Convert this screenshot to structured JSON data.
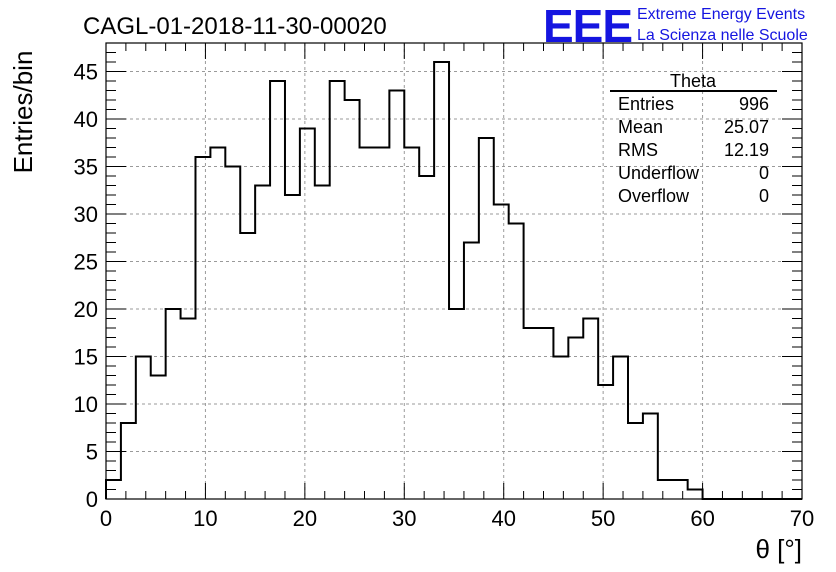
{
  "logo": {
    "mark": "EEE",
    "line1": "Extreme Energy Events",
    "line2": "La Scienza nelle Scuole",
    "color": "#1515e0"
  },
  "chart_data": {
    "type": "histogram",
    "title": "CAGL-01-2018-11-30-00020",
    "xlabel": "θ [°]",
    "ylabel": "Entries/bin",
    "xlim": [
      0,
      70
    ],
    "ylim": [
      0,
      48
    ],
    "xticks": [
      0,
      10,
      20,
      30,
      40,
      50,
      60,
      70
    ],
    "yticks": [
      0,
      5,
      10,
      15,
      20,
      25,
      30,
      35,
      40,
      45
    ],
    "grid": true,
    "bin_width": 1.5,
    "bin_start": 0,
    "values": [
      2,
      8,
      15,
      13,
      20,
      19,
      36,
      37,
      35,
      28,
      33,
      44,
      32,
      39,
      33,
      44,
      42,
      37,
      37,
      43,
      37,
      34,
      46,
      20,
      27,
      38,
      31,
      29,
      18,
      18,
      15,
      17,
      19,
      12,
      15,
      8,
      9,
      2,
      2,
      1,
      0,
      0,
      0,
      0,
      0,
      0,
      0
    ],
    "line_color": "#000000",
    "stats": {
      "title": "Theta",
      "rows": [
        {
          "label": "Entries",
          "value": "996"
        },
        {
          "label": "Mean",
          "value": "25.07"
        },
        {
          "label": "RMS",
          "value": "12.19"
        },
        {
          "label": "Underflow",
          "value": "0"
        },
        {
          "label": "Overflow",
          "value": "0"
        }
      ]
    }
  }
}
